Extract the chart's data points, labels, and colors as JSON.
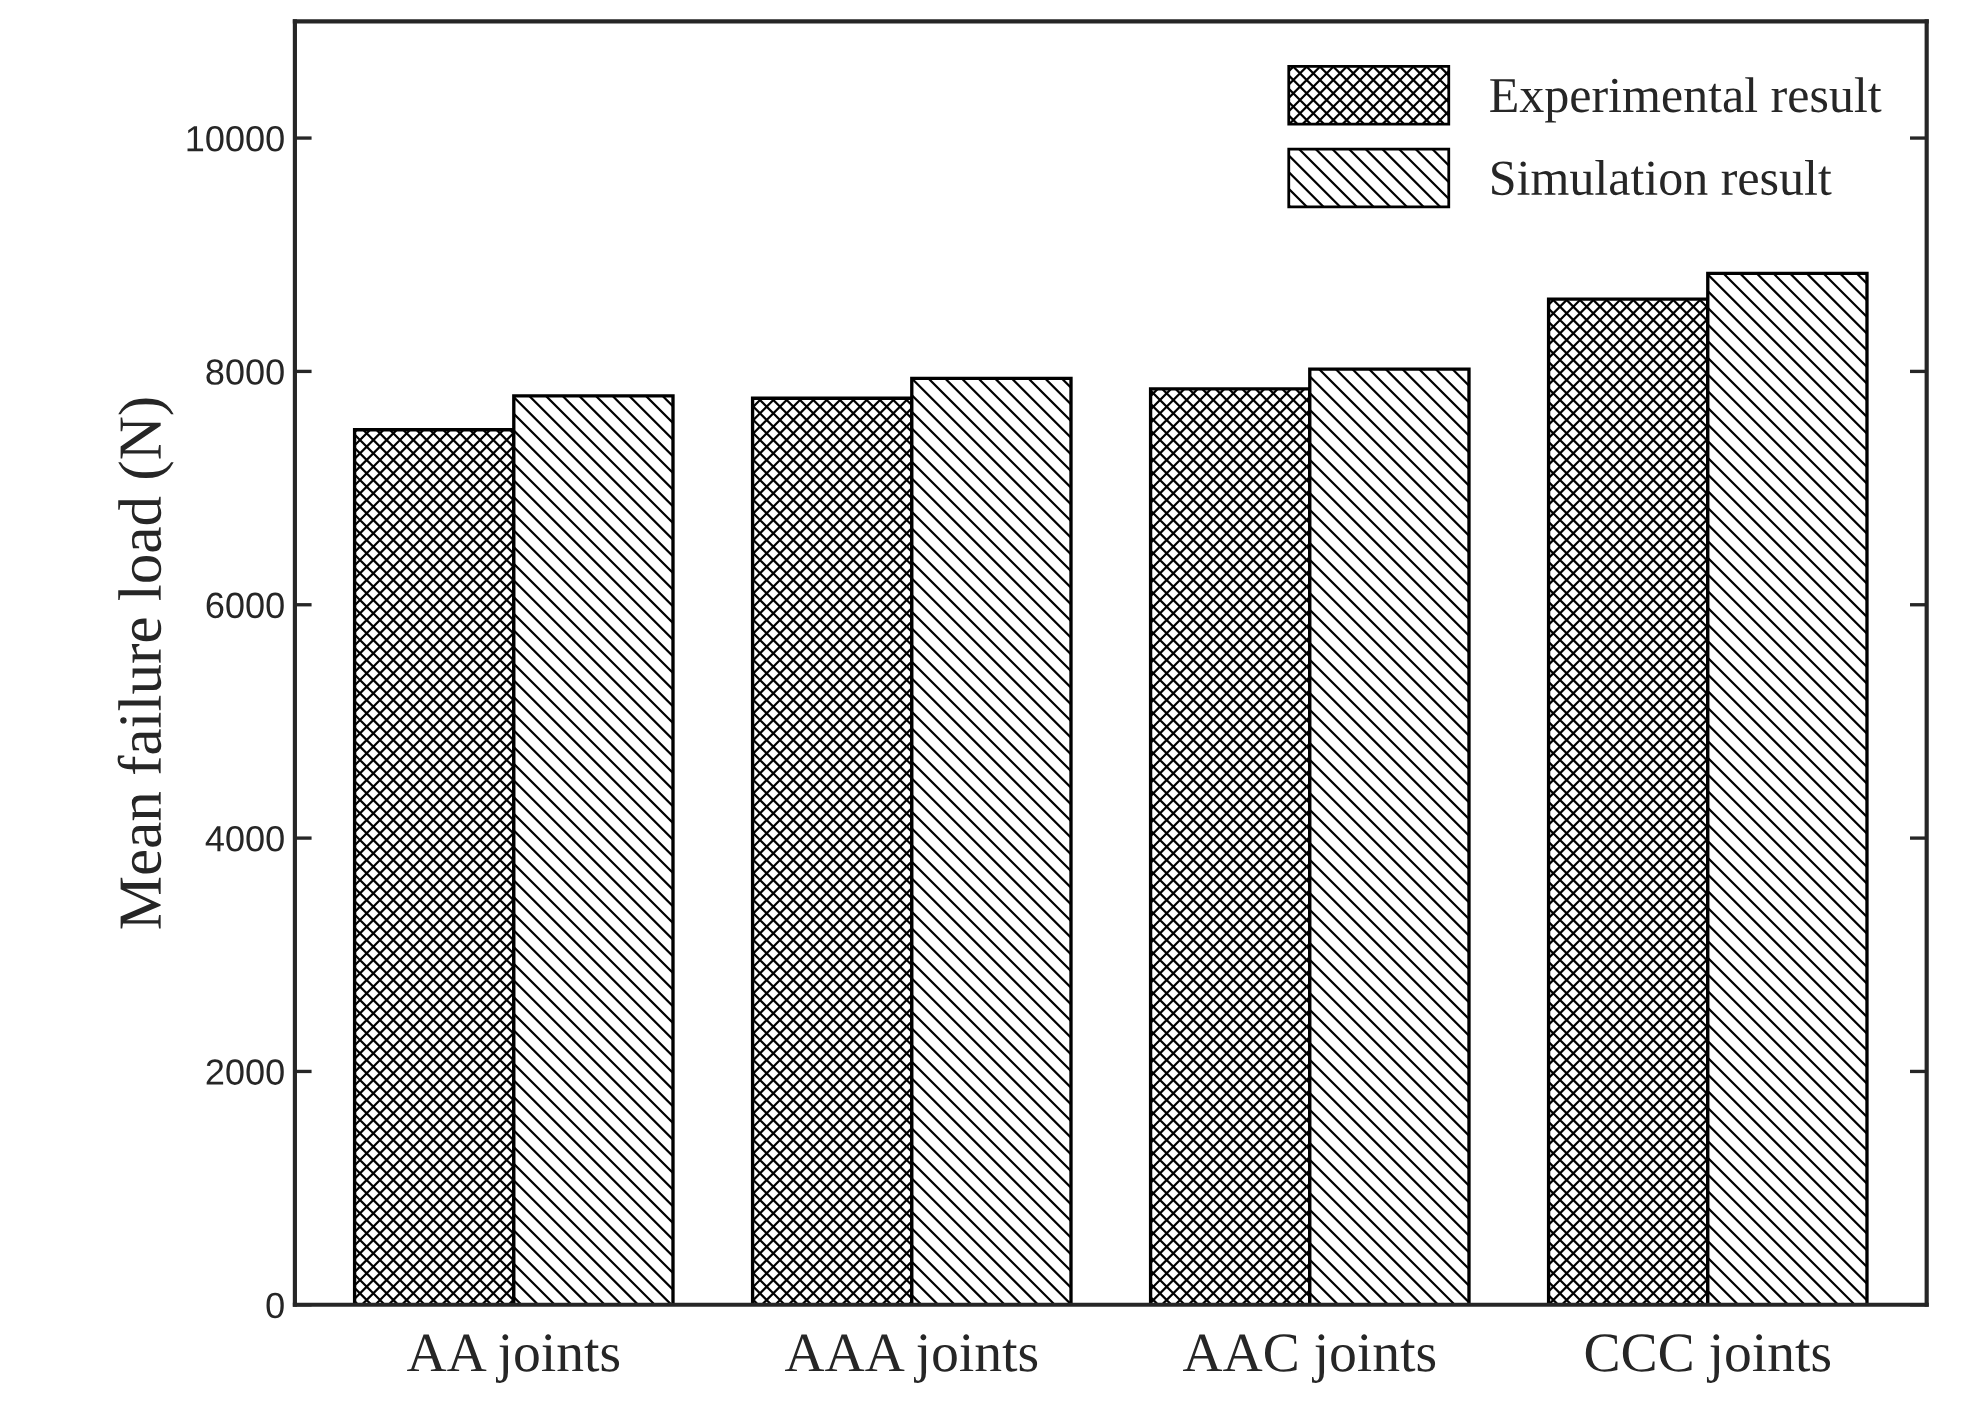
{
  "chart_data": {
    "type": "bar",
    "ylabel": "Mean failure load (N)",
    "categories": [
      "AA joints",
      "AAA joints",
      "AAC joints",
      "CCC joints"
    ],
    "series": [
      {
        "name": "Experimental result",
        "color": "#000000",
        "values": [
          7500,
          7770,
          7850,
          8620
        ]
      },
      {
        "name": "Simulation result",
        "color": "#000000",
        "values": [
          7790,
          7940,
          8020,
          8840
        ]
      }
    ],
    "ylim": [
      0,
      11000
    ],
    "yticks": [
      0,
      2000,
      4000,
      6000,
      8000,
      10000
    ],
    "grid": false,
    "legend": "top right"
  }
}
